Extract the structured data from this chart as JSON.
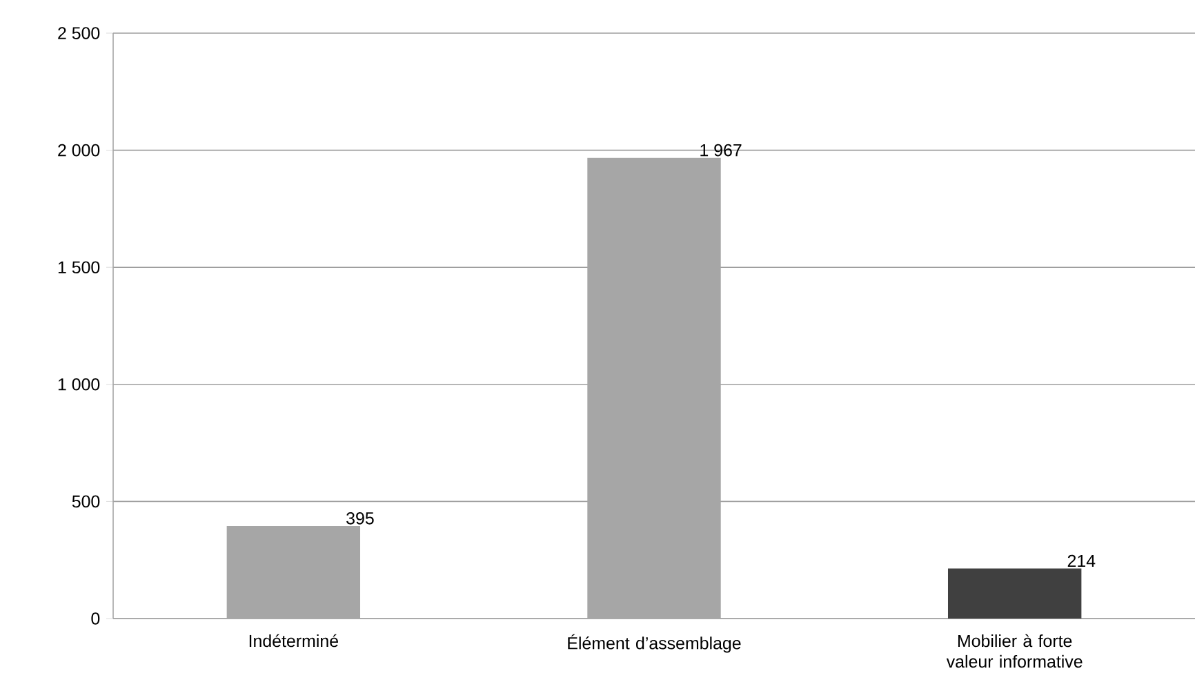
{
  "chart_data": {
    "type": "bar",
    "categories": [
      "Indéterminé",
      "Élément d’assemblage",
      "Mobilier à forte valeur informative"
    ],
    "values": [
      395,
      1967,
      214
    ],
    "colors": [
      "#a6a6a6",
      "#a6a6a6",
      "#404040"
    ],
    "value_labels": [
      "395",
      "1 967",
      "214"
    ],
    "ylim": [
      0,
      2500
    ],
    "yticks": [
      0,
      500,
      {
        "value": 1000,
        "label": "1 000"
      },
      {
        "value": 1500,
        "label": "1 500"
      },
      {
        "value": 2000,
        "label": "2 000"
      },
      {
        "value": 2500,
        "label": "2 500"
      }
    ],
    "grid": "y"
  }
}
